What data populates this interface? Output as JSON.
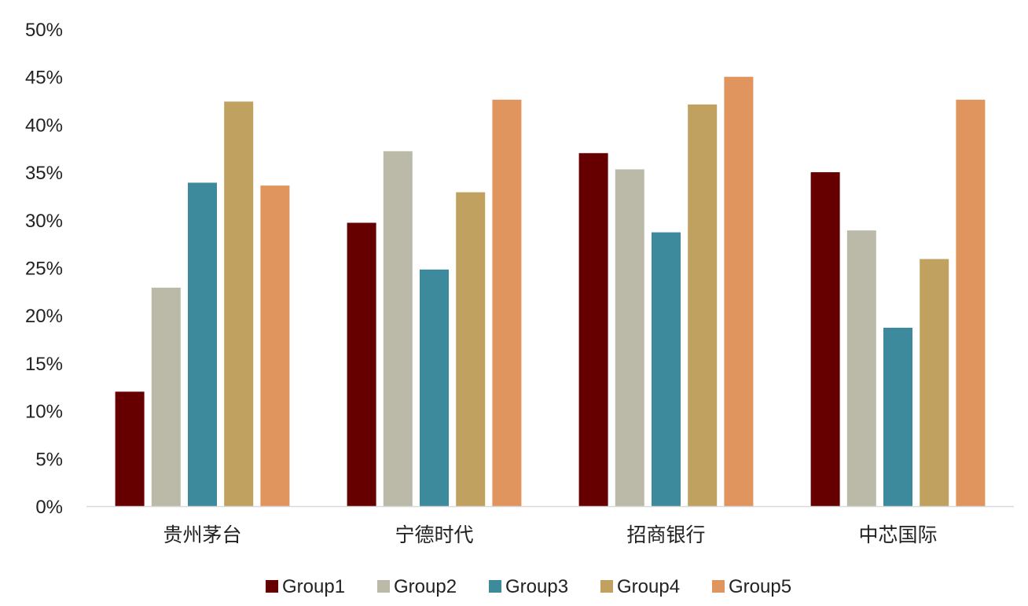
{
  "chart_data": {
    "type": "bar",
    "title": "",
    "xlabel": "",
    "ylabel": "",
    "categories": [
      "贵州茅台",
      "宁德时代",
      "招商银行",
      "中芯国际"
    ],
    "series": [
      {
        "name": "Group1",
        "color": "#660000",
        "values": [
          12.0,
          29.7,
          37.0,
          35.0
        ]
      },
      {
        "name": "Group2",
        "color": "#BBBAA8",
        "values": [
          22.9,
          37.2,
          35.3,
          28.9
        ]
      },
      {
        "name": "Group3",
        "color": "#3C8A9C",
        "values": [
          33.9,
          24.8,
          28.7,
          18.7
        ]
      },
      {
        "name": "Group4",
        "color": "#C0A15F",
        "values": [
          42.4,
          32.9,
          42.1,
          25.9
        ]
      },
      {
        "name": "Group5",
        "color": "#E0955E",
        "values": [
          33.6,
          42.6,
          45.0,
          42.6
        ]
      }
    ],
    "ylim": [
      0,
      50
    ],
    "yticks": [
      "0%",
      "5%",
      "10%",
      "15%",
      "20%",
      "25%",
      "30%",
      "35%",
      "40%",
      "45%",
      "50%"
    ],
    "grid": false,
    "legend": "bottom"
  }
}
